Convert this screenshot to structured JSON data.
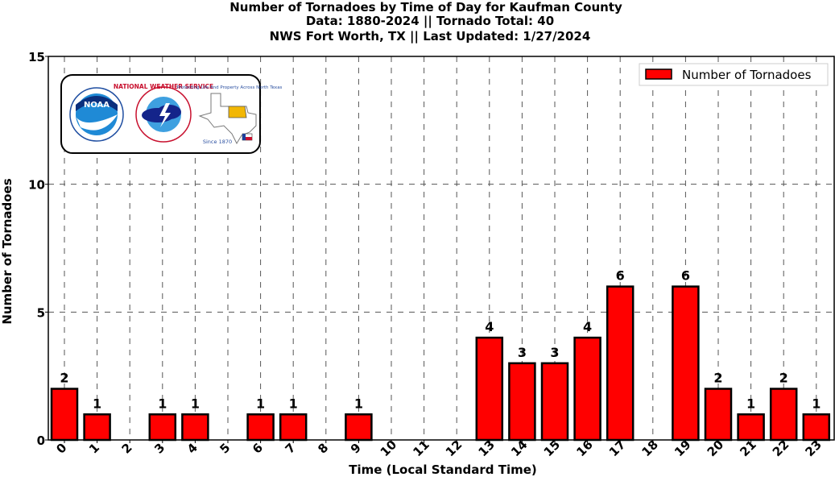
{
  "colors": {
    "bar": "#ff0000",
    "edge": "#000000"
  },
  "logos": {
    "noaa_text": "NOAA",
    "nws_ring_text": "NATIONAL WEATHER SERVICE",
    "fw_motto": "Protecting Life And Property Across North Texas",
    "fw_since": "Since 1870"
  },
  "chart_data": {
    "type": "bar",
    "title_lines": [
      "Number of Tornadoes by Time of Day for Kaufman County",
      "Data: 1880-2024 || Tornado Total: 40",
      "NWS Fort Worth, TX || Last Updated: 1/27/2024"
    ],
    "xlabel": "Time (Local Standard Time)",
    "ylabel": "Number of Tornadoes",
    "categories": [
      "0",
      "1",
      "2",
      "3",
      "4",
      "5",
      "6",
      "7",
      "8",
      "9",
      "10",
      "11",
      "12",
      "13",
      "14",
      "15",
      "16",
      "17",
      "18",
      "19",
      "20",
      "21",
      "22",
      "23"
    ],
    "series": [
      {
        "name": "Number of Tornadoes",
        "values": [
          2,
          1,
          0,
          1,
          1,
          0,
          1,
          1,
          0,
          1,
          0,
          0,
          0,
          4,
          3,
          3,
          4,
          6,
          0,
          6,
          2,
          1,
          2,
          1
        ]
      }
    ],
    "data_labels": [
      "2",
      "1",
      "",
      "1",
      "1",
      "",
      "1",
      "1",
      "",
      "1",
      "",
      "",
      "",
      "4",
      "3",
      "3",
      "4",
      "6",
      "",
      "6",
      "2",
      "1",
      "2",
      "1"
    ],
    "ylim": [
      0,
      15
    ],
    "yticks": [
      0,
      5,
      10,
      15
    ],
    "grid": true,
    "legend_position": "top-right"
  }
}
